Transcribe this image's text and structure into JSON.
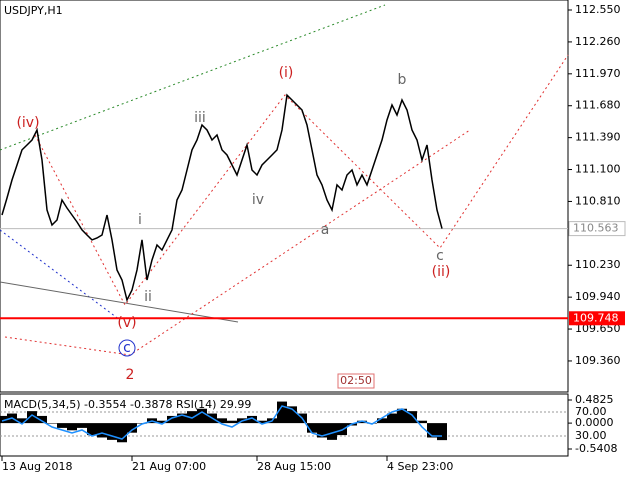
{
  "chart_data": [
    {
      "type": "line",
      "title": "USDJPY,H1",
      "color": "#000000",
      "values": [
        110.687,
        110.841,
        111.005,
        111.141,
        111.278,
        111.323,
        111.368,
        111.459,
        111.187,
        110.732,
        110.596,
        110.641,
        110.823,
        110.75,
        110.687,
        110.623,
        110.551,
        110.505,
        110.46,
        110.478,
        110.505,
        110.687,
        110.46,
        110.187,
        110.096,
        109.914,
        110.005,
        110.187,
        110.46,
        110.096,
        110.278,
        110.414,
        110.369,
        110.46,
        110.551,
        110.823,
        110.914,
        111.096,
        111.278,
        111.368,
        111.505,
        111.459,
        111.368,
        111.414,
        111.278,
        111.232,
        111.141,
        111.05,
        111.187,
        111.323,
        111.096,
        111.05,
        111.141,
        111.187,
        111.232,
        111.278,
        111.459,
        111.777,
        111.732,
        111.687,
        111.641,
        111.505,
        111.278,
        111.05,
        110.96,
        110.823,
        110.732,
        110.96,
        110.914,
        111.05,
        111.096,
        110.96,
        111.05,
        110.96,
        111.096,
        111.232,
        111.368,
        111.55,
        111.687,
        111.596,
        111.732,
        111.641,
        111.459,
        111.368,
        111.187,
        111.323,
        111.005,
        110.732,
        110.563
      ],
      "xlim": [
        0,
        113.2
      ],
      "xticks": [
        {
          "value": 0,
          "label": "13 Aug 2018"
        },
        {
          "value": 26,
          "label": "21 Aug 07:00"
        },
        {
          "value": 51,
          "label": "28 Aug 15:00"
        },
        {
          "value": 77,
          "label": "4 Sep 23:00"
        }
      ],
      "ylim": [
        109.096,
        112.641
      ],
      "yticks": [
        {
          "value": 112.55,
          "label": "112.550"
        },
        {
          "value": 112.26,
          "label": "112.260"
        },
        {
          "value": 111.97,
          "label": "111.970"
        },
        {
          "value": 111.68,
          "label": "111.680"
        },
        {
          "value": 111.39,
          "label": "111.390"
        },
        {
          "value": 111.1,
          "label": "111.100"
        },
        {
          "value": 110.81,
          "label": "110.810"
        },
        {
          "value": 110.23,
          "label": "110.230"
        },
        {
          "value": 109.94,
          "label": "109.940"
        },
        {
          "value": 109.65,
          "label": "109.650"
        },
        {
          "value": 109.36,
          "label": "109.360"
        }
      ],
      "current_price": {
        "value": 110.563,
        "label": "110.563"
      },
      "level": {
        "value": 109.748,
        "label": "109.748",
        "color": "#ff0000"
      },
      "annotations": [
        "(iv)",
        "(v)",
        "(i)",
        "(ii)",
        "i",
        "ii",
        "iii",
        "iv",
        "a",
        "b",
        "c",
        "c",
        "2"
      ],
      "time_label": "02:50"
    },
    {
      "type": "macd",
      "title": "MACD(5,34,5) -0.3554 -0.3878 RSI(14) 29.99",
      "xlim": [
        0,
        56.6
      ],
      "ylim": [
        -0.666,
        0.608
      ],
      "yticks": [
        0.4825,
        {
          "value": 0,
          "label": "0.0000"
        },
        -0.5408
      ],
      "y2lim": [
        -1.7,
        100
      ],
      "y2ticks": [
        {
          "value": 70,
          "label": "70.00"
        },
        {
          "value": 30,
          "label": "30.00"
        }
      ],
      "series": [
        {
          "color": "#000000",
          "values": [
            0.15,
            0.2,
            0.1,
            0.25,
            0.15,
            0.0,
            -0.1,
            -0.15,
            -0.1,
            -0.25,
            -0.3,
            -0.35,
            -0.4,
            -0.2,
            0.0,
            0.1,
            0.05,
            0.15,
            0.2,
            0.25,
            0.3,
            0.2,
            0.1,
            0.05,
            0.1,
            0.15,
            0.05,
            0.1,
            0.45,
            0.35,
            0.2,
            -0.2,
            -0.3,
            -0.35,
            -0.25,
            -0.05,
            0.05,
            0.0,
            0.1,
            0.2,
            0.3,
            0.25,
            0.05,
            -0.3,
            -0.3554
          ]
        },
        {
          "color": "#1e90ff",
          "axis": "y2",
          "values": [
            55,
            60,
            50,
            65,
            55,
            45,
            40,
            35,
            40,
            30,
            35,
            30,
            25,
            40,
            50,
            55,
            50,
            60,
            65,
            60,
            70,
            60,
            50,
            45,
            55,
            60,
            50,
            55,
            80,
            75,
            60,
            35,
            30,
            35,
            40,
            50,
            55,
            50,
            60,
            70,
            75,
            65,
            45,
            30,
            29.99
          ]
        }
      ]
    }
  ]
}
